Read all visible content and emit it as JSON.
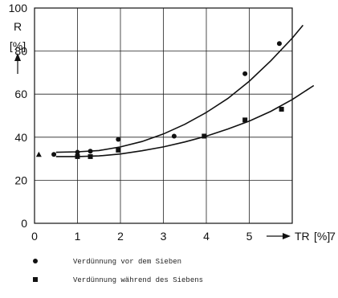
{
  "chart_data": {
    "type": "scatter",
    "x": {
      "ticks": [
        "0",
        "1",
        "2",
        "3",
        "4",
        "5"
      ],
      "extra_tick": "7",
      "label": "TR",
      "unit": "[%]",
      "range": [
        0,
        6
      ]
    },
    "y": {
      "ticks": [
        "0",
        "20",
        "40",
        "60",
        "80",
        "100"
      ],
      "label": "R",
      "unit": "[%]",
      "range": [
        0,
        100
      ]
    },
    "grid": true,
    "series": [
      {
        "name": "Verdünnung vor dem Sieben",
        "marker": "circle",
        "points": [
          [
            0.45,
            32
          ],
          [
            1.0,
            33
          ],
          [
            1.3,
            33.5
          ],
          [
            1.95,
            39
          ],
          [
            3.25,
            40.5
          ],
          [
            4.9,
            69.5
          ],
          [
            5.7,
            83.5
          ]
        ],
        "fit": [
          [
            0.5,
            33
          ],
          [
            1.0,
            33.2
          ],
          [
            1.5,
            33.8
          ],
          [
            2.0,
            35.5
          ],
          [
            2.5,
            38
          ],
          [
            3.0,
            41.5
          ],
          [
            3.5,
            46
          ],
          [
            4.0,
            51.5
          ],
          [
            4.5,
            58
          ],
          [
            5.0,
            66
          ],
          [
            5.5,
            75.5
          ],
          [
            6.0,
            86
          ],
          [
            6.25,
            92
          ]
        ]
      },
      {
        "name": "Verdünnung während des Siebens",
        "marker": "square",
        "points": [
          [
            1.0,
            31
          ],
          [
            1.3,
            31
          ],
          [
            1.95,
            34
          ],
          [
            3.95,
            40.5
          ],
          [
            4.9,
            48
          ],
          [
            5.75,
            53
          ]
        ],
        "fit": [
          [
            0.5,
            31
          ],
          [
            1.0,
            31
          ],
          [
            1.5,
            31.3
          ],
          [
            2.0,
            32.2
          ],
          [
            2.5,
            33.7
          ],
          [
            3.0,
            35.5
          ],
          [
            3.5,
            37.8
          ],
          [
            4.0,
            40.5
          ],
          [
            4.5,
            43.8
          ],
          [
            5.0,
            47.5
          ],
          [
            5.5,
            52
          ],
          [
            6.0,
            57.5
          ],
          [
            6.5,
            64
          ]
        ]
      },
      {
        "marker": "triangle",
        "points": [
          [
            0.1,
            32
          ]
        ]
      }
    ],
    "legend": {
      "placement": "bottom-left",
      "entries": [
        {
          "marker": "circle",
          "label": "Verdünnung vor dem Sieben"
        },
        {
          "marker": "square",
          "label": "Verdünnung während des Siebens"
        }
      ]
    }
  }
}
